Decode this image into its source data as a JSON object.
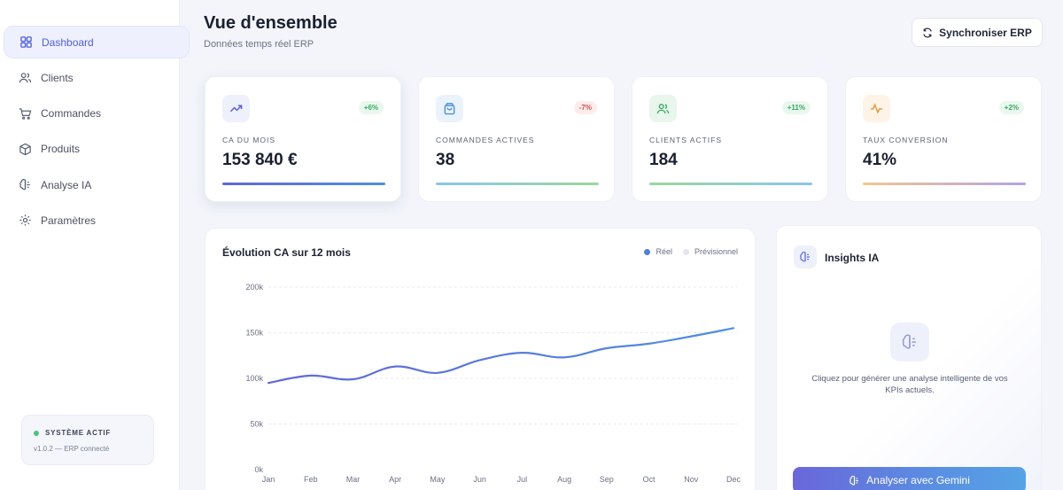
{
  "sidebar": {
    "items": [
      {
        "label": "Dashboard",
        "icon": "dashboard-grid-icon",
        "active": true
      },
      {
        "label": "Clients",
        "icon": "users-icon"
      },
      {
        "label": "Commandes",
        "icon": "shopping-cart-icon"
      },
      {
        "label": "Produits",
        "icon": "package-icon"
      },
      {
        "label": "Analyse IA",
        "icon": "brain-icon"
      },
      {
        "label": "Paramètres",
        "icon": "gear-icon"
      }
    ],
    "system": {
      "status": "SYSTÈME ACTIF",
      "version": "v1.0.2 — ERP connecté"
    }
  },
  "header": {
    "title": "Vue d'ensemble",
    "subtitle": "Données temps réel ERP",
    "sync_label": "Synchroniser ERP"
  },
  "kpis": [
    {
      "label": "CA DU MOIS",
      "value": "153 840 €",
      "badge": "+6%",
      "trend": "up",
      "icon": "trending-up-icon",
      "icon_bg": "#eef0fc",
      "icon_color": "#5b63d6",
      "bar_from": "#6366d8",
      "bar_to": "#4f8fe0"
    },
    {
      "label": "COMMANDES ACTIVES",
      "value": "38",
      "badge": "-7%",
      "trend": "down",
      "icon": "shopping-bag-icon",
      "icon_bg": "#eaf3fc",
      "icon_color": "#4b8fd6",
      "bar_from": "#8cc4ee",
      "bar_to": "#9ad79b"
    },
    {
      "label": "CLIENTS ACTIFS",
      "value": "184",
      "badge": "+11%",
      "trend": "up",
      "icon": "users-icon",
      "icon_bg": "#e8f6ec",
      "icon_color": "#3aa662",
      "bar_from": "#9ad79b",
      "bar_to": "#8cc4ee"
    },
    {
      "label": "TAUX CONVERSION",
      "value": "41%",
      "badge": "+2%",
      "trend": "up",
      "icon": "activity-icon",
      "icon_bg": "#fdf3e6",
      "icon_color": "#e0963a",
      "bar_from": "#f3c68e",
      "bar_to": "#b3a3e8"
    }
  ],
  "chart_card": {
    "title": "Évolution CA sur 12 mois",
    "legend": [
      {
        "label": "Réel",
        "color": "#4f7fe0"
      },
      {
        "label": "Prévisionnel",
        "color": "#e3e6ee"
      }
    ]
  },
  "chart_data": {
    "type": "line",
    "title": "Évolution CA sur 12 mois",
    "categories": [
      "Jan",
      "Feb",
      "Mar",
      "Apr",
      "May",
      "Jun",
      "Jul",
      "Aug",
      "Sep",
      "Oct",
      "Nov",
      "Dec"
    ],
    "series": [
      {
        "name": "Réel",
        "values": [
          95000,
          103000,
          99000,
          113000,
          106000,
          120000,
          128000,
          123000,
          133000,
          138000,
          146000,
          155000
        ]
      }
    ],
    "y_ticks": [
      "0k",
      "50k",
      "100k",
      "150k",
      "200k"
    ],
    "ylim": [
      0,
      200000
    ],
    "grid": true,
    "legend": "top-right",
    "line_from": "#6366d8",
    "line_to": "#4f8fe0"
  },
  "insights": {
    "title": "Insights IA",
    "prompt": "Cliquez pour générer une analyse intelligente de vos KPIs actuels.",
    "button_label": "Analyser avec Gemini"
  }
}
